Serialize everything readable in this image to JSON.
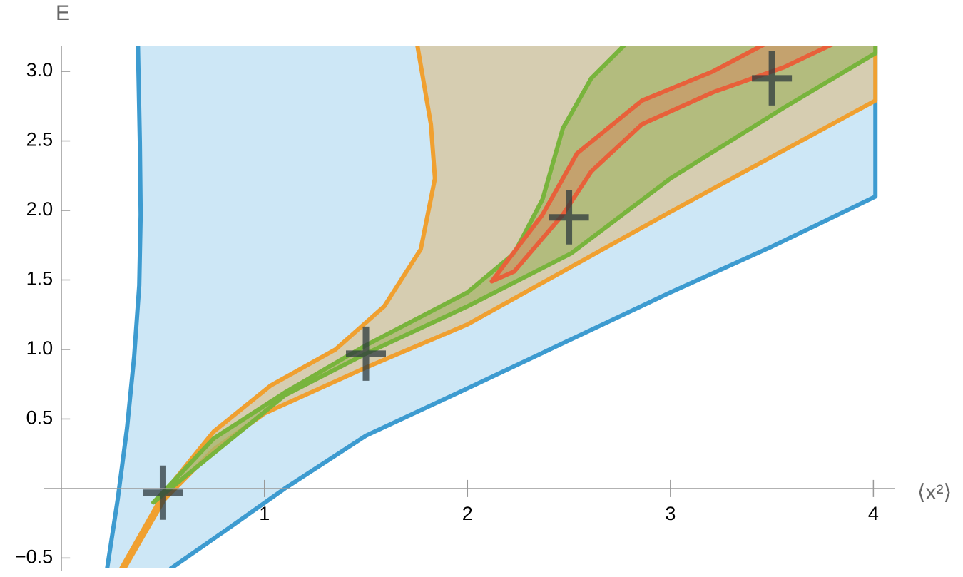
{
  "chart_data": {
    "type": "region",
    "x_label": "⟨x²⟩",
    "y_label": "E",
    "xlim": [
      -0.085,
      4.09
    ],
    "ylim": [
      -0.575,
      3.18
    ],
    "xticks": [
      1,
      2,
      3,
      4
    ],
    "yticks": [
      {
        "value": -0.5,
        "label": "−0.5"
      },
      0.5,
      {
        "value": 1,
        "label": "1.0"
      },
      1.5,
      {
        "value": 2,
        "label": "2.0"
      },
      2.5,
      {
        "value": 3,
        "label": "3.0"
      }
    ],
    "grid": false,
    "series": [
      {
        "color": "#3d9bd0",
        "fill": "#bcdff3",
        "x": [
          0.2,
          0.225,
          0.277,
          0.323,
          0.358,
          0.383,
          0.39,
          0.386,
          0.375,
          4.01,
          4.01,
          3.5,
          3.0,
          2.0,
          1.5,
          1.1,
          0.8,
          0.54,
          0.49
        ],
        "values": [
          -0.7,
          -0.574,
          -0.077,
          0.436,
          0.949,
          1.46,
          1.97,
          2.49,
          3.3,
          3.3,
          2.1,
          1.74,
          1.41,
          0.72,
          0.38,
          0.0,
          -0.31,
          -0.574,
          -0.7
        ]
      },
      {
        "color": "#f0a030",
        "fill": "#d8c49a",
        "x": [
          0.26,
          0.295,
          0.506,
          0.75,
          1.03,
          1.35,
          1.59,
          1.77,
          1.84,
          1.82,
          1.74,
          4.01,
          4.01,
          3.0,
          2.0,
          1.5,
          1.0,
          0.75,
          0.506,
          0.31,
          0.28
        ],
        "values": [
          -0.7,
          -0.574,
          -0.03,
          0.41,
          0.74,
          1.0,
          1.31,
          1.72,
          2.23,
          2.62,
          3.3,
          3.3,
          2.79,
          1.99,
          1.18,
          0.87,
          0.54,
          0.28,
          -0.08,
          -0.574,
          -0.7
        ]
      },
      {
        "color": "#78b43c",
        "fill": "#a7b56e",
        "x": [
          0.453,
          0.75,
          1.1,
          1.5,
          2.0,
          2.23,
          2.37,
          2.47,
          2.61,
          2.85,
          4.01,
          4.01,
          3.56,
          3.0,
          2.51,
          2.0,
          1.5,
          1.1
        ],
        "values": [
          -0.1,
          0.36,
          0.69,
          1.03,
          1.41,
          1.69,
          2.08,
          2.59,
          2.95,
          3.3,
          3.3,
          3.13,
          2.74,
          2.23,
          1.69,
          1.31,
          0.97,
          0.67
        ]
      },
      {
        "color": "#e8603a",
        "fill": "#c99a6a",
        "x": [
          2.12,
          2.37,
          2.54,
          2.86,
          3.21,
          3.6,
          3.95,
          3.56,
          3.21,
          2.86,
          2.61,
          2.47,
          2.23
        ],
        "values": [
          1.49,
          1.97,
          2.41,
          2.79,
          3.0,
          3.3,
          3.3,
          3.03,
          2.85,
          2.62,
          2.28,
          1.97,
          1.56
        ]
      }
    ],
    "points": {
      "color": "#2e3a3e",
      "x": [
        0.5,
        1.5,
        2.5,
        3.5
      ],
      "values": [
        -0.03,
        0.97,
        1.95,
        2.95
      ]
    }
  }
}
